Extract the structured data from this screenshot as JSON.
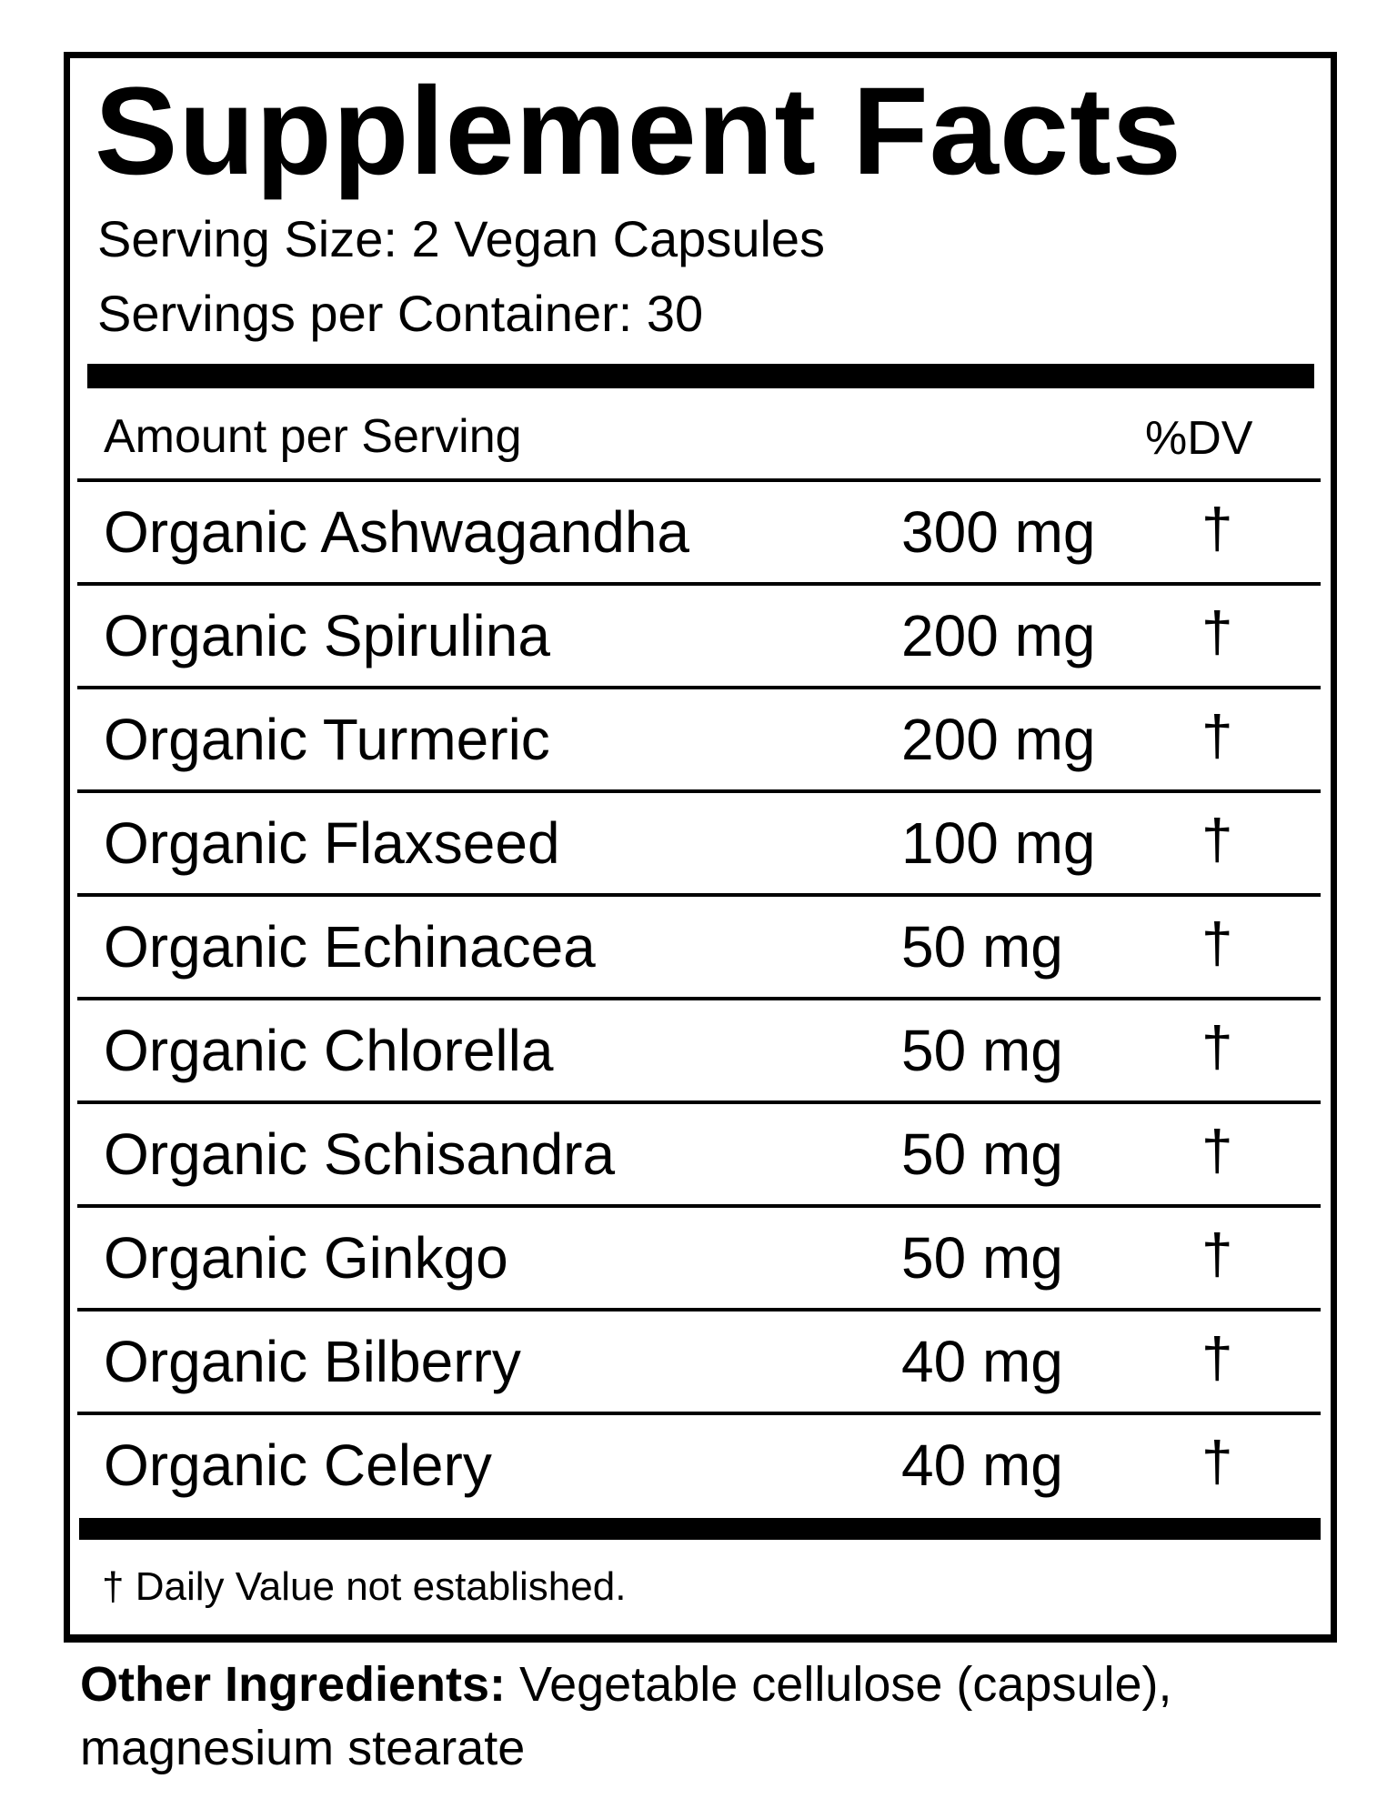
{
  "label": {
    "title": "Supplement Facts",
    "serving_size": "Serving Size: 2 Vegan Capsules",
    "servings_per_container": "Servings per Container: 30",
    "header_amount": "Amount per Serving",
    "header_dv": "%DV",
    "rows": [
      {
        "name": "Organic Ashwagandha",
        "amount": "300 mg",
        "dv": "†"
      },
      {
        "name": "Organic Spirulina",
        "amount": "200 mg",
        "dv": "†"
      },
      {
        "name": "Organic Turmeric",
        "amount": "200 mg",
        "dv": "†"
      },
      {
        "name": "Organic Flaxseed",
        "amount": "100 mg",
        "dv": "†"
      },
      {
        "name": "Organic Echinacea",
        "amount": "50 mg",
        "dv": "†"
      },
      {
        "name": "Organic Chlorella",
        "amount": "50 mg",
        "dv": "†"
      },
      {
        "name": "Organic Schisandra",
        "amount": "50 mg",
        "dv": "†"
      },
      {
        "name": "Organic Ginkgo",
        "amount": "50 mg",
        "dv": "†"
      },
      {
        "name": "Organic Bilberry",
        "amount": "40 mg",
        "dv": "†"
      },
      {
        "name": "Organic Celery",
        "amount": "40 mg",
        "dv": "†"
      }
    ],
    "footnote": "† Daily Value not established."
  },
  "other_ingredients": {
    "label": "Other Ingredients:",
    "text": " Vegetable cellulose (capsule), magnesium  stearate"
  }
}
